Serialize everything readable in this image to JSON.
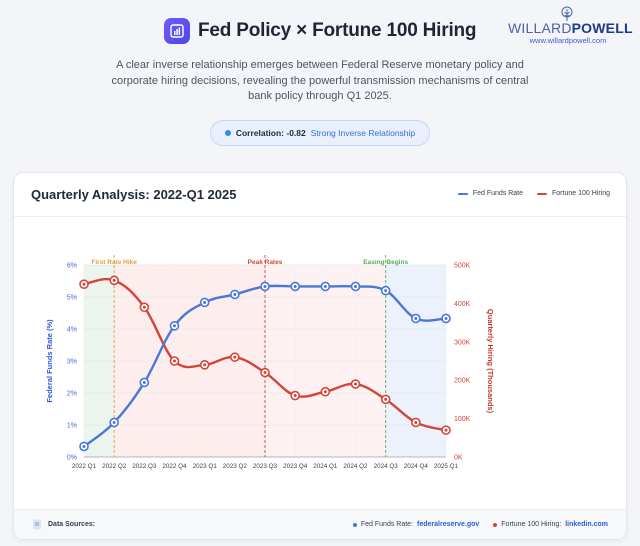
{
  "header": {
    "title": "Fed Policy × Fortune 100 Hiring",
    "subtitle": "A clear inverse relationship emerges between Federal Reserve monetary policy and corporate hiring decisions, revealing the powerful transmission mechanisms of central bank policy through Q1 2025.",
    "brand_part1": "WILLARD",
    "brand_part2": "POWELL",
    "brand_url": "www.willardpowell.com",
    "correlation_label": "Correlation: -0.82",
    "correlation_desc": "Strong Inverse Relationship"
  },
  "card": {
    "title": "Quarterly Analysis: 2022-Q1 2025",
    "legend": [
      "Fed Funds Rate",
      "Fortune 100 Hiring"
    ]
  },
  "footer": {
    "sources_label": "Data Sources:",
    "source1_label": "Fed Funds Rate:",
    "source1_link": "federalreserve.gov",
    "source2_label": "Fortune 100 Hiring:",
    "source2_link": "linkedin.com"
  },
  "colors": {
    "fed": "#4a78d9",
    "hiring": "#d3453b",
    "hike": "#e0a040",
    "peak": "#c94a3d",
    "easing": "#5aaa5a"
  },
  "chart_data": {
    "type": "line",
    "categories": [
      "2022 Q1",
      "2022 Q2",
      "2022 Q3",
      "2022 Q4",
      "2023 Q1",
      "2023 Q2",
      "2023 Q3",
      "2023 Q4",
      "2024 Q1",
      "2024 Q2",
      "2024 Q3",
      "2024 Q4",
      "2025 Q1"
    ],
    "series": [
      {
        "name": "Fed Funds Rate",
        "axis": "left",
        "values": [
          0.33,
          1.08,
          2.33,
          4.1,
          4.83,
          5.08,
          5.33,
          5.33,
          5.33,
          5.33,
          5.2,
          4.33,
          4.33
        ]
      },
      {
        "name": "Fortune 100 Hiring",
        "axis": "right",
        "values": [
          450,
          460,
          390,
          250,
          240,
          260,
          220,
          160,
          170,
          190,
          150,
          90,
          70
        ]
      }
    ],
    "y_left": {
      "label": "Federal Funds Rate (%)",
      "min": 0,
      "max": 6,
      "ticks": [
        "0%",
        "1%",
        "2%",
        "3%",
        "4%",
        "5%",
        "6%"
      ]
    },
    "y_right": {
      "label": "Quarterly Hiring (Thousands)",
      "min": 0,
      "max": 500,
      "ticks": [
        "0K",
        "100K",
        "200K",
        "300K",
        "400K",
        "500K"
      ]
    },
    "annotations": [
      {
        "label": "First Rate Hike",
        "index": 1
      },
      {
        "label": "Peak Rates",
        "index": 6
      },
      {
        "label": "Easing Begins",
        "index": 10
      }
    ],
    "grid": true,
    "legend_position": "top-right"
  }
}
